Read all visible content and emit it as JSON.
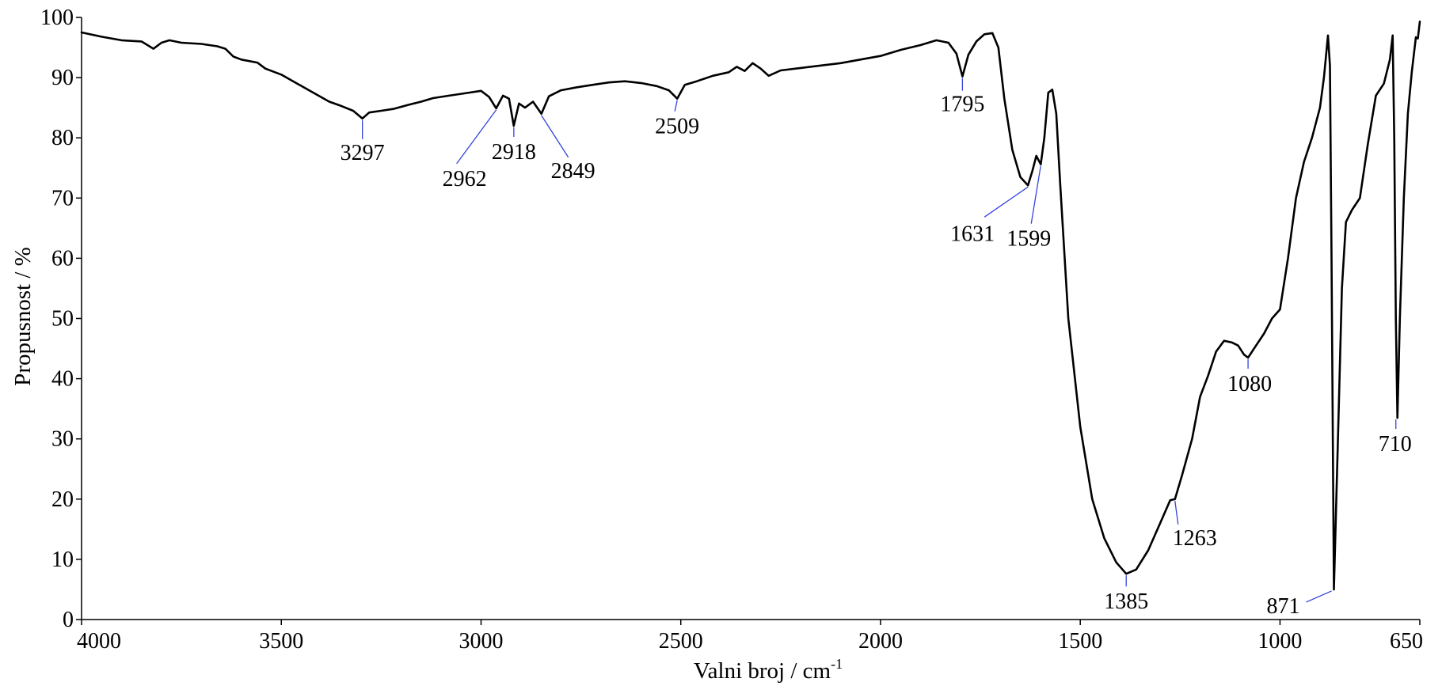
{
  "chart_data": {
    "type": "line",
    "title": "",
    "xlabel": "Valni broj / cm",
    "xlabel_superscript": "-1",
    "ylabel": "Propusnost / %",
    "xlim": [
      4000,
      650
    ],
    "ylim": [
      0,
      100
    ],
    "x_reversed": true,
    "grid": false,
    "legend": "none",
    "x_ticks": [
      4000,
      3500,
      3000,
      2500,
      2000,
      1500,
      1000,
      650
    ],
    "x_tick_labels": [
      "4000",
      "3500",
      "3000",
      "2500",
      "2000",
      "1500",
      "1000",
      "650"
    ],
    "y_ticks": [
      0,
      10,
      20,
      30,
      40,
      50,
      60,
      70,
      80,
      90,
      100
    ],
    "y_tick_labels": [
      "0",
      "10",
      "20",
      "30",
      "40",
      "50",
      "60",
      "70",
      "80",
      "90",
      "100"
    ],
    "colors": {
      "line": "#000000",
      "annotation": "#3344dd",
      "axis": "#000000"
    },
    "series": [
      {
        "x": [
          4000,
          3950,
          3900,
          3850,
          3820,
          3800,
          3780,
          3750,
          3700,
          3660,
          3640,
          3620,
          3600,
          3560,
          3540,
          3500,
          3460,
          3420,
          3380,
          3350,
          3320,
          3297,
          3280,
          3250,
          3220,
          3180,
          3150,
          3120,
          3080,
          3040,
          3000,
          2980,
          2962,
          2945,
          2930,
          2918,
          2905,
          2890,
          2870,
          2849,
          2830,
          2800,
          2760,
          2720,
          2680,
          2640,
          2600,
          2560,
          2530,
          2509,
          2490,
          2460,
          2420,
          2380,
          2360,
          2340,
          2320,
          2300,
          2280,
          2250,
          2200,
          2100,
          2000,
          1950,
          1900,
          1860,
          1830,
          1810,
          1795,
          1780,
          1760,
          1740,
          1720,
          1705,
          1690,
          1670,
          1650,
          1631,
          1620,
          1610,
          1599,
          1590,
          1580,
          1570,
          1560,
          1550,
          1530,
          1500,
          1470,
          1440,
          1410,
          1385,
          1360,
          1330,
          1300,
          1275,
          1263,
          1245,
          1220,
          1200,
          1180,
          1160,
          1140,
          1120,
          1105,
          1090,
          1080,
          1060,
          1040,
          1020,
          1000,
          980,
          960,
          940,
          920,
          900,
          890,
          880,
          875,
          871,
          865,
          855,
          845,
          835,
          820,
          800,
          780,
          760,
          740,
          725,
          718,
          714,
          710,
          706,
          700,
          690,
          680,
          670,
          660,
          655,
          650
        ],
        "y": [
          97.5,
          96.8,
          96.2,
          96.0,
          94.8,
          95.8,
          96.2,
          95.8,
          95.6,
          95.2,
          94.8,
          93.5,
          93.0,
          92.5,
          91.5,
          90.5,
          89.0,
          87.5,
          86.0,
          85.3,
          84.5,
          83.2,
          84.2,
          84.5,
          84.8,
          85.5,
          86.0,
          86.6,
          87.0,
          87.4,
          87.8,
          86.8,
          84.9,
          87.0,
          86.5,
          82.0,
          85.7,
          85.0,
          86.0,
          84.0,
          86.9,
          87.9,
          88.4,
          88.8,
          89.2,
          89.4,
          89.1,
          88.6,
          87.9,
          86.5,
          88.8,
          89.4,
          90.3,
          90.9,
          91.8,
          91.1,
          92.4,
          91.5,
          90.3,
          91.2,
          91.6,
          92.4,
          93.6,
          94.6,
          95.4,
          96.2,
          95.8,
          94.0,
          90.2,
          93.8,
          96.0,
          97.2,
          97.4,
          95.0,
          86.5,
          78.0,
          73.5,
          72.1,
          74.5,
          77.0,
          75.6,
          80.0,
          87.5,
          88.0,
          84.0,
          72.0,
          50.0,
          32.0,
          20.0,
          13.5,
          9.5,
          7.6,
          8.3,
          11.5,
          16.0,
          19.8,
          20.0,
          24.0,
          30.0,
          37.0,
          40.5,
          44.5,
          46.3,
          46.0,
          45.5,
          44.0,
          43.5,
          45.5,
          47.5,
          50.0,
          51.5,
          60.0,
          70.0,
          76.0,
          80.0,
          85.0,
          90.0,
          97.0,
          92.0,
          60.0,
          5.0,
          30.0,
          55.0,
          66.0,
          68.0,
          70.0,
          79.0,
          87.0,
          89.0,
          93.0,
          97.0,
          80.0,
          50.0,
          33.5,
          50.0,
          70.0,
          84.0,
          91.0,
          96.7,
          96.5,
          99.3
        ]
      }
    ],
    "annotations": [
      {
        "label": "3297",
        "x": 3297,
        "y": 83.2
      },
      {
        "label": "2962",
        "x": 2962,
        "y": 84.9
      },
      {
        "label": "2918",
        "x": 2918,
        "y": 82.0
      },
      {
        "label": "2849",
        "x": 2849,
        "y": 84.0
      },
      {
        "label": "2509",
        "x": 2509,
        "y": 86.5
      },
      {
        "label": "1795",
        "x": 1795,
        "y": 90.2
      },
      {
        "label": "1631",
        "x": 1631,
        "y": 72.1
      },
      {
        "label": "1599",
        "x": 1599,
        "y": 75.6
      },
      {
        "label": "1385",
        "x": 1385,
        "y": 7.6
      },
      {
        "label": "1263",
        "x": 1263,
        "y": 20.0
      },
      {
        "label": "1080",
        "x": 1080,
        "y": 43.5
      },
      {
        "label": "871",
        "x": 871,
        "y": 5.0
      },
      {
        "label": "710",
        "x": 710,
        "y": 33.5
      }
    ]
  }
}
